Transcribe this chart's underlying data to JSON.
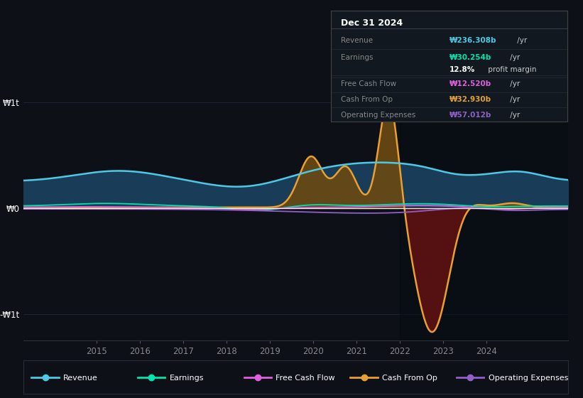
{
  "background_color": "#0d1117",
  "ylim": [
    -1.25,
    1.25
  ],
  "xlim": [
    2013.3,
    2025.9
  ],
  "ytick_positions": [
    -1.0,
    0.0,
    1.0
  ],
  "ytick_labels": [
    "-₩1t",
    "₩0",
    "₩1t"
  ],
  "xtick_positions": [
    2015,
    2016,
    2017,
    2018,
    2019,
    2020,
    2021,
    2022,
    2023,
    2024
  ],
  "xtick_labels": [
    "2015",
    "2016",
    "2017",
    "2018",
    "2019",
    "2020",
    "2021",
    "2022",
    "2023",
    "2024"
  ],
  "colors": {
    "revenue": "#4dc9e6",
    "earnings": "#00e5b0",
    "free_cash_flow": "#e060e0",
    "cash_from_op": "#e8a030",
    "operating_expenses": "#9060c8",
    "revenue_fill": "#1a3f5c",
    "cash_pos_fill": "#6b4a12",
    "cash_neg_fill": "#5c1212",
    "zero_line": "#ffffff"
  },
  "infobox": {
    "title": "Dec 31 2024",
    "rows": [
      {
        "label": "Revenue",
        "value": "₩236.308b",
        "suffix": " /yr",
        "color": "#4dc9e6"
      },
      {
        "label": "Earnings",
        "value": "₩30.254b",
        "suffix": " /yr",
        "color": "#00e5b0"
      },
      {
        "label": "",
        "value": "12.8%",
        "suffix": " profit margin",
        "color": "#ffffff"
      },
      {
        "label": "Free Cash Flow",
        "value": "₩12.520b",
        "suffix": " /yr",
        "color": "#e060e0"
      },
      {
        "label": "Cash From Op",
        "value": "₩32.930b",
        "suffix": " /yr",
        "color": "#e8a030"
      },
      {
        "label": "Operating Expenses",
        "value": "₩57.012b",
        "suffix": " /yr",
        "color": "#9060c8"
      }
    ]
  },
  "legend": [
    {
      "label": "Revenue",
      "color": "#4dc9e6"
    },
    {
      "label": "Earnings",
      "color": "#00e5b0"
    },
    {
      "label": "Free Cash Flow",
      "color": "#e060e0"
    },
    {
      "label": "Cash From Op",
      "color": "#e8a030"
    },
    {
      "label": "Operating Expenses",
      "color": "#9060c8"
    }
  ]
}
